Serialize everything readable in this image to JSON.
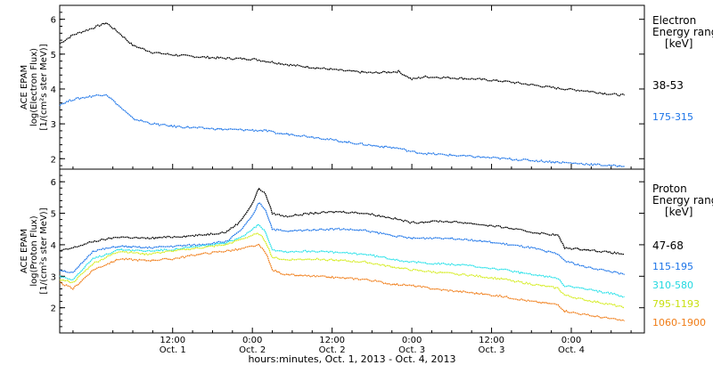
{
  "chart_data": {
    "type": "line",
    "x_axis": {
      "title": "hours:minutes, Oct.  1, 2013 - Oct.  4, 2013",
      "range_hours": [
        -5,
        83
      ],
      "ticks": [
        {
          "hour": 12,
          "time": "12:00",
          "date": "Oct. 1"
        },
        {
          "hour": 24,
          "time": "0:00",
          "date": "Oct. 2"
        },
        {
          "hour": 36,
          "time": "12:00",
          "date": "Oct. 2"
        },
        {
          "hour": 48,
          "time": "0:00",
          "date": "Oct. 3"
        },
        {
          "hour": 60,
          "time": "12:00",
          "date": "Oct. 3"
        },
        {
          "hour": 72,
          "time": "0:00",
          "date": "Oct. 4"
        }
      ]
    },
    "panels": [
      {
        "id": "electron",
        "ylabel_lines": [
          "ACE EPAM",
          "log(Electron Flux)",
          "[1/(cm²s ster MeV)]"
        ],
        "ylim": [
          1.7,
          6.4
        ],
        "yticks": [
          2,
          3,
          4,
          5,
          6
        ],
        "legend_title_lines": [
          "Electron",
          "Energy ranges",
          "[keV]"
        ],
        "series": [
          {
            "name": "38-53",
            "color": "#000000",
            "points": [
              [
                -5,
                5.3
              ],
              [
                -3,
                5.55
              ],
              [
                0,
                5.75
              ],
              [
                2,
                5.9
              ],
              [
                4,
                5.6
              ],
              [
                6,
                5.25
              ],
              [
                9,
                5.05
              ],
              [
                12,
                4.98
              ],
              [
                16,
                4.92
              ],
              [
                20,
                4.88
              ],
              [
                24,
                4.86
              ],
              [
                26,
                4.8
              ],
              [
                28,
                4.74
              ],
              [
                30,
                4.68
              ],
              [
                34,
                4.6
              ],
              [
                38,
                4.52
              ],
              [
                42,
                4.46
              ],
              [
                46,
                4.5
              ],
              [
                48,
                4.28
              ],
              [
                50,
                4.35
              ],
              [
                54,
                4.32
              ],
              [
                58,
                4.28
              ],
              [
                62,
                4.22
              ],
              [
                66,
                4.12
              ],
              [
                70,
                4.02
              ],
              [
                74,
                3.95
              ],
              [
                78,
                3.85
              ],
              [
                80,
                3.82
              ]
            ]
          },
          {
            "name": "175-315",
            "color": "#1a73e8",
            "points": [
              [
                -5,
                3.55
              ],
              [
                -3,
                3.7
              ],
              [
                0,
                3.8
              ],
              [
                2,
                3.85
              ],
              [
                4,
                3.5
              ],
              [
                6,
                3.15
              ],
              [
                9,
                3.0
              ],
              [
                12,
                2.93
              ],
              [
                16,
                2.88
              ],
              [
                20,
                2.84
              ],
              [
                24,
                2.82
              ],
              [
                26,
                2.8
              ],
              [
                28,
                2.72
              ],
              [
                30,
                2.7
              ],
              [
                34,
                2.6
              ],
              [
                38,
                2.48
              ],
              [
                42,
                2.38
              ],
              [
                46,
                2.3
              ],
              [
                48,
                2.2
              ],
              [
                50,
                2.15
              ],
              [
                54,
                2.1
              ],
              [
                58,
                2.05
              ],
              [
                62,
                2.0
              ],
              [
                66,
                1.95
              ],
              [
                70,
                1.9
              ],
              [
                74,
                1.85
              ],
              [
                78,
                1.8
              ],
              [
                80,
                1.78
              ]
            ]
          }
        ]
      },
      {
        "id": "proton",
        "ylabel_lines": [
          "ACE EPAM",
          "log(Proton Flux)",
          "[1/(cm²s ster MeV)]"
        ],
        "ylim": [
          1.2,
          6.4
        ],
        "yticks": [
          2,
          3,
          4,
          5,
          6
        ],
        "legend_title_lines": [
          "Proton",
          "Energy ranges",
          "[keV]"
        ],
        "series": [
          {
            "name": "47-68",
            "color": "#000000",
            "points": [
              [
                -5,
                3.8
              ],
              [
                -3,
                3.9
              ],
              [
                0,
                4.1
              ],
              [
                4,
                4.25
              ],
              [
                8,
                4.2
              ],
              [
                12,
                4.25
              ],
              [
                16,
                4.3
              ],
              [
                20,
                4.4
              ],
              [
                22,
                4.7
              ],
              [
                24,
                5.3
              ],
              [
                25,
                5.8
              ],
              [
                26,
                5.6
              ],
              [
                27,
                5.0
              ],
              [
                29,
                4.9
              ],
              [
                33,
                5.0
              ],
              [
                37,
                5.05
              ],
              [
                41,
                5.0
              ],
              [
                45,
                4.85
              ],
              [
                48,
                4.7
              ],
              [
                52,
                4.75
              ],
              [
                56,
                4.7
              ],
              [
                62,
                4.55
              ],
              [
                66,
                4.4
              ],
              [
                70,
                4.3
              ],
              [
                71,
                3.9
              ],
              [
                74,
                3.85
              ],
              [
                78,
                3.75
              ],
              [
                80,
                3.7
              ]
            ]
          },
          {
            "name": "115-195",
            "color": "#1a73e8",
            "points": [
              [
                -5,
                3.2
              ],
              [
                -3,
                3.1
              ],
              [
                0,
                3.8
              ],
              [
                4,
                3.95
              ],
              [
                8,
                3.9
              ],
              [
                12,
                3.95
              ],
              [
                16,
                4.0
              ],
              [
                20,
                4.1
              ],
              [
                22,
                4.4
              ],
              [
                24,
                4.9
              ],
              [
                25,
                5.35
              ],
              [
                26,
                5.1
              ],
              [
                27,
                4.5
              ],
              [
                29,
                4.42
              ],
              [
                33,
                4.48
              ],
              [
                37,
                4.5
              ],
              [
                41,
                4.45
              ],
              [
                45,
                4.3
              ],
              [
                48,
                4.2
              ],
              [
                52,
                4.22
              ],
              [
                56,
                4.18
              ],
              [
                62,
                4.02
              ],
              [
                66,
                3.9
              ],
              [
                70,
                3.7
              ],
              [
                71,
                3.5
              ],
              [
                74,
                3.3
              ],
              [
                78,
                3.15
              ],
              [
                80,
                3.05
              ]
            ]
          },
          {
            "name": "310-580",
            "color": "#20e0e8",
            "points": [
              [
                -5,
                3.0
              ],
              [
                -3,
                2.9
              ],
              [
                0,
                3.55
              ],
              [
                4,
                3.85
              ],
              [
                8,
                3.8
              ],
              [
                12,
                3.85
              ],
              [
                16,
                3.95
              ],
              [
                20,
                4.05
              ],
              [
                22,
                4.2
              ],
              [
                24,
                4.5
              ],
              [
                25,
                4.65
              ],
              [
                26,
                4.4
              ],
              [
                27,
                3.85
              ],
              [
                29,
                3.78
              ],
              [
                33,
                3.8
              ],
              [
                37,
                3.75
              ],
              [
                41,
                3.7
              ],
              [
                45,
                3.55
              ],
              [
                48,
                3.45
              ],
              [
                52,
                3.4
              ],
              [
                56,
                3.35
              ],
              [
                62,
                3.2
              ],
              [
                66,
                3.05
              ],
              [
                70,
                2.95
              ],
              [
                71,
                2.7
              ],
              [
                74,
                2.6
              ],
              [
                78,
                2.45
              ],
              [
                80,
                2.35
              ]
            ]
          },
          {
            "name": "795-1193",
            "color": "#d4ec1a",
            "points": [
              [
                -5,
                2.9
              ],
              [
                -3,
                2.8
              ],
              [
                0,
                3.4
              ],
              [
                4,
                3.8
              ],
              [
                8,
                3.7
              ],
              [
                12,
                3.8
              ],
              [
                16,
                3.9
              ],
              [
                20,
                4.0
              ],
              [
                22,
                4.15
              ],
              [
                24,
                4.3
              ],
              [
                25,
                4.35
              ],
              [
                26,
                4.1
              ],
              [
                27,
                3.6
              ],
              [
                29,
                3.52
              ],
              [
                33,
                3.55
              ],
              [
                37,
                3.5
              ],
              [
                41,
                3.45
              ],
              [
                45,
                3.3
              ],
              [
                48,
                3.2
              ],
              [
                52,
                3.12
              ],
              [
                56,
                3.05
              ],
              [
                62,
                2.9
              ],
              [
                66,
                2.75
              ],
              [
                70,
                2.62
              ],
              [
                71,
                2.4
              ],
              [
                74,
                2.25
              ],
              [
                78,
                2.1
              ],
              [
                80,
                2.0
              ]
            ]
          },
          {
            "name": "1060-1900",
            "color": "#f07c16",
            "points": [
              [
                -5,
                2.8
              ],
              [
                -3,
                2.6
              ],
              [
                0,
                3.2
              ],
              [
                4,
                3.55
              ],
              [
                8,
                3.5
              ],
              [
                12,
                3.55
              ],
              [
                16,
                3.7
              ],
              [
                20,
                3.8
              ],
              [
                22,
                3.85
              ],
              [
                24,
                3.95
              ],
              [
                25,
                3.98
              ],
              [
                26,
                3.75
              ],
              [
                27,
                3.2
              ],
              [
                29,
                3.05
              ],
              [
                33,
                3.0
              ],
              [
                37,
                2.95
              ],
              [
                41,
                2.9
              ],
              [
                45,
                2.75
              ],
              [
                48,
                2.7
              ],
              [
                52,
                2.58
              ],
              [
                56,
                2.5
              ],
              [
                62,
                2.35
              ],
              [
                66,
                2.2
              ],
              [
                70,
                2.1
              ],
              [
                71,
                1.9
              ],
              [
                74,
                1.78
              ],
              [
                78,
                1.65
              ],
              [
                80,
                1.58
              ]
            ]
          }
        ]
      }
    ]
  }
}
